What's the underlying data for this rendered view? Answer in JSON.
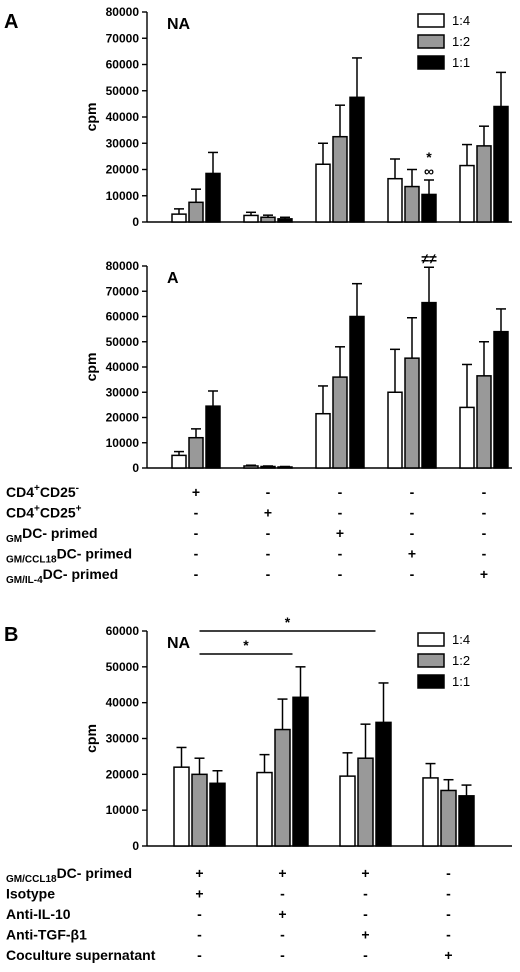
{
  "panel_A_letter": "A",
  "panel_B_letter": "B",
  "chart_data": [
    {
      "id": "A-NA",
      "type": "bar",
      "panel_tag": "NA",
      "ylabel": "cpm",
      "ylim": [
        0,
        80000
      ],
      "yticks": [
        0,
        10000,
        20000,
        30000,
        40000,
        50000,
        60000,
        70000,
        80000
      ],
      "legend": [
        "1:4",
        "1:2",
        "1:1"
      ],
      "legend_placement": "top-right",
      "series": [
        {
          "name": "1:4",
          "color": "#ffffff",
          "values": [
            3000,
            2500,
            22000,
            16500,
            21500
          ],
          "errors": [
            2000,
            1200,
            8000,
            7500,
            8000
          ]
        },
        {
          "name": "1:2",
          "color": "#999999",
          "values": [
            7500,
            1800,
            32500,
            13500,
            29000
          ],
          "errors": [
            5000,
            800,
            12000,
            6500,
            7500
          ]
        },
        {
          "name": "1:1",
          "color": "#000000",
          "values": [
            18500,
            1200,
            47500,
            10500,
            44000
          ],
          "errors": [
            8000,
            600,
            15000,
            5500,
            13000
          ]
        }
      ],
      "annotations": [
        {
          "group": 3,
          "series": 2,
          "text": "*"
        },
        {
          "group": 3,
          "series": 2,
          "text": "∞"
        }
      ]
    },
    {
      "id": "A-A",
      "type": "bar",
      "panel_tag": "A",
      "ylabel": "cpm",
      "ylim": [
        0,
        80000
      ],
      "yticks": [
        0,
        10000,
        20000,
        30000,
        40000,
        50000,
        60000,
        70000,
        80000
      ],
      "series": [
        {
          "name": "1:4",
          "color": "#ffffff",
          "values": [
            5000,
            800,
            21500,
            30000,
            24000
          ],
          "errors": [
            1500,
            300,
            11000,
            17000,
            17000
          ]
        },
        {
          "name": "1:2",
          "color": "#999999",
          "values": [
            12000,
            600,
            36000,
            43500,
            36500
          ],
          "errors": [
            3500,
            200,
            12000,
            16000,
            13500
          ]
        },
        {
          "name": "1:1",
          "color": "#000000",
          "values": [
            24500,
            400,
            60000,
            65500,
            54000
          ],
          "errors": [
            6000,
            200,
            13000,
            14000,
            9000
          ]
        }
      ],
      "annotations": [
        {
          "group": 3,
          "series": 2,
          "text": "≠≠"
        }
      ],
      "conditions": [
        {
          "main": "CD4",
          "sup": "+",
          "main2": "CD25",
          "sup2": "-",
          "marks": [
            "+",
            "-",
            "-",
            "-",
            "-"
          ]
        },
        {
          "main": "CD4",
          "sup": "+",
          "main2": "CD25",
          "sup2": "+",
          "marks": [
            "-",
            "+",
            "-",
            "-",
            "-"
          ]
        },
        {
          "sub": "GM",
          "main": "DC- primed",
          "marks": [
            "-",
            "-",
            "+",
            "-",
            "-"
          ]
        },
        {
          "sub": "GM/CCL18",
          "main": "DC- primed",
          "marks": [
            "-",
            "-",
            "-",
            "+",
            "-"
          ]
        },
        {
          "sub": "GM/IL-4",
          "main": "DC- primed",
          "marks": [
            "-",
            "-",
            "-",
            "-",
            "+"
          ]
        }
      ]
    },
    {
      "id": "B-NA",
      "type": "bar",
      "panel_tag": "NA",
      "ylabel": "cpm",
      "ylim": [
        0,
        60000
      ],
      "yticks": [
        0,
        10000,
        20000,
        30000,
        40000,
        50000,
        60000
      ],
      "legend": [
        "1:4",
        "1:2",
        "1:1"
      ],
      "legend_placement": "top-right",
      "series": [
        {
          "name": "1:4",
          "color": "#ffffff",
          "values": [
            22000,
            20500,
            19500,
            19000
          ],
          "errors": [
            5500,
            5000,
            6500,
            4000
          ]
        },
        {
          "name": "1:2",
          "color": "#999999",
          "values": [
            20000,
            32500,
            24500,
            15500
          ],
          "errors": [
            4500,
            8500,
            9500,
            3000
          ]
        },
        {
          "name": "1:1",
          "color": "#000000",
          "values": [
            17500,
            41500,
            34500,
            14000
          ],
          "errors": [
            3500,
            8500,
            11000,
            3000
          ]
        }
      ],
      "significance": [
        {
          "from_group": 0,
          "to_group": 1,
          "text": "*"
        },
        {
          "from_group": 0,
          "to_group": 2,
          "text": "*"
        }
      ],
      "conditions": [
        {
          "sub": "GM/CCL18",
          "main": "DC- primed",
          "marks": [
            "+",
            "+",
            "+",
            "-"
          ]
        },
        {
          "main": "Isotype",
          "marks": [
            "+",
            "-",
            "-",
            "-"
          ]
        },
        {
          "main": "Anti-IL-10",
          "marks": [
            "-",
            "+",
            "-",
            "-"
          ]
        },
        {
          "main": "Anti-TGF-β1",
          "marks": [
            "-",
            "-",
            "+",
            "-"
          ]
        },
        {
          "main": "Coculture supernatant",
          "marks": [
            "-",
            "-",
            "-",
            "+"
          ]
        }
      ]
    }
  ]
}
